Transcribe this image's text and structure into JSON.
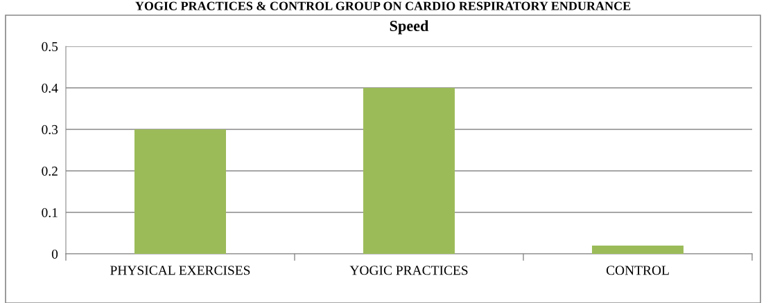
{
  "chart_data": {
    "type": "bar",
    "title": "Speed",
    "annotations": [
      "YOGIC PRACTICES & CONTROL GROUP ON CARDIO RESPIRATORY ENDURANCE"
    ],
    "categories": [
      "PHYSICAL EXERCISES",
      "YOGIC PRACTICES",
      "CONTROL"
    ],
    "values": [
      0.3,
      0.4,
      0.02
    ],
    "color": "#9bbb59",
    "ylim": [
      0,
      0.5
    ],
    "yticks": [
      0,
      0.1,
      0.2,
      0.3,
      0.4,
      0.5
    ],
    "grid": "y",
    "legend": false
  }
}
